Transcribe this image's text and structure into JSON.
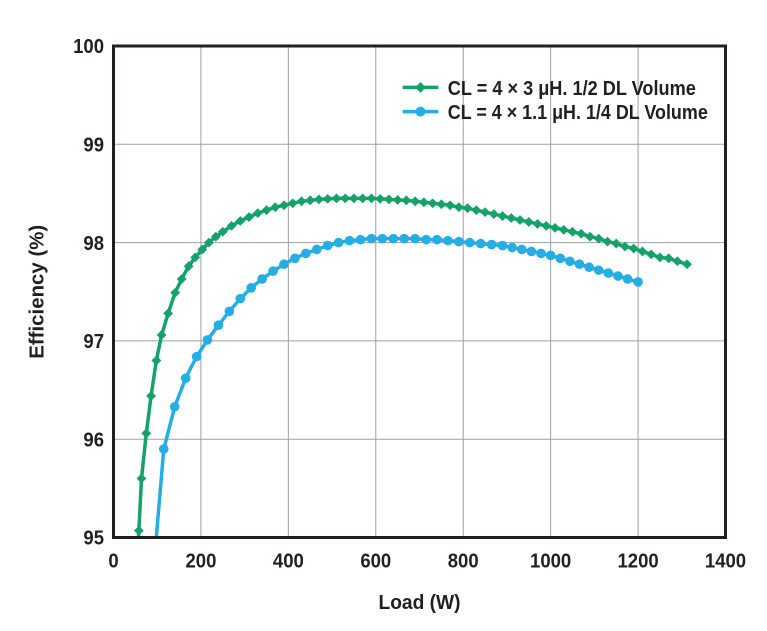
{
  "chart_data": {
    "type": "line",
    "title": "",
    "xlabel": "Load (W)",
    "ylabel": "Efficiency (%)",
    "xlim": [
      0,
      1400
    ],
    "ylim": [
      95,
      100
    ],
    "xticks": [
      0,
      200,
      400,
      600,
      800,
      1000,
      1200,
      1400
    ],
    "yticks": [
      95,
      96,
      97,
      98,
      99,
      100
    ],
    "grid": true,
    "legend_position": "inside top-right",
    "series": [
      {
        "name": "CL = 4 × 3 μH. 1/2 DL Volume",
        "marker": "diamond",
        "color": "#14a269",
        "lead": [
          [
            56,
            94.93
          ]
        ],
        "points": [
          [
            58,
            95.07
          ],
          [
            64,
            95.6
          ],
          [
            75,
            96.06
          ],
          [
            86,
            96.44
          ],
          [
            98,
            96.8
          ],
          [
            110,
            97.06
          ],
          [
            125,
            97.28
          ],
          [
            141,
            97.49
          ],
          [
            156,
            97.63
          ],
          [
            172,
            97.76
          ],
          [
            187,
            97.85
          ],
          [
            203,
            97.93
          ],
          [
            218,
            98.0
          ],
          [
            234,
            98.06
          ],
          [
            250,
            98.11
          ],
          [
            270,
            98.17
          ],
          [
            290,
            98.22
          ],
          [
            310,
            98.26
          ],
          [
            330,
            98.3
          ],
          [
            350,
            98.33
          ],
          [
            370,
            98.36
          ],
          [
            390,
            98.38
          ],
          [
            410,
            98.4
          ],
          [
            430,
            98.42
          ],
          [
            450,
            98.43
          ],
          [
            470,
            98.44
          ],
          [
            490,
            98.445
          ],
          [
            510,
            98.45
          ],
          [
            530,
            98.45
          ],
          [
            550,
            98.45
          ],
          [
            570,
            98.45
          ],
          [
            590,
            98.45
          ],
          [
            610,
            98.445
          ],
          [
            630,
            98.44
          ],
          [
            650,
            98.435
          ],
          [
            670,
            98.43
          ],
          [
            690,
            98.42
          ],
          [
            710,
            98.41
          ],
          [
            730,
            98.4
          ],
          [
            750,
            98.39
          ],
          [
            770,
            98.38
          ],
          [
            790,
            98.36
          ],
          [
            810,
            98.35
          ],
          [
            830,
            98.33
          ],
          [
            850,
            98.31
          ],
          [
            870,
            98.29
          ],
          [
            890,
            98.27
          ],
          [
            910,
            98.25
          ],
          [
            930,
            98.23
          ],
          [
            950,
            98.21
          ],
          [
            970,
            98.19
          ],
          [
            990,
            98.17
          ],
          [
            1010,
            98.15
          ],
          [
            1030,
            98.13
          ],
          [
            1050,
            98.11
          ],
          [
            1070,
            98.09
          ],
          [
            1090,
            98.06
          ],
          [
            1110,
            98.04
          ],
          [
            1130,
            98.01
          ],
          [
            1150,
            97.99
          ],
          [
            1170,
            97.96
          ],
          [
            1190,
            97.94
          ],
          [
            1210,
            97.91
          ],
          [
            1230,
            97.88
          ],
          [
            1250,
            97.85
          ],
          [
            1270,
            97.84
          ],
          [
            1290,
            97.81
          ],
          [
            1312,
            97.78
          ]
        ]
      },
      {
        "name": "CL = 4 × 1.1 μH. 1/4 DL Volume",
        "marker": "circle",
        "color": "#25ade5",
        "lead": [
          [
            95,
            94.85
          ]
        ],
        "points": [
          [
            115,
            95.9
          ],
          [
            140,
            96.33
          ],
          [
            165,
            96.62
          ],
          [
            190,
            96.84
          ],
          [
            215,
            97.01
          ],
          [
            240,
            97.16
          ],
          [
            265,
            97.3
          ],
          [
            290,
            97.43
          ],
          [
            315,
            97.54
          ],
          [
            340,
            97.63
          ],
          [
            365,
            97.71
          ],
          [
            390,
            97.78
          ],
          [
            415,
            97.84
          ],
          [
            440,
            97.89
          ],
          [
            465,
            97.93
          ],
          [
            490,
            97.97
          ],
          [
            515,
            98.0
          ],
          [
            540,
            98.02
          ],
          [
            565,
            98.03
          ],
          [
            590,
            98.04
          ],
          [
            615,
            98.04
          ],
          [
            640,
            98.04
          ],
          [
            665,
            98.04
          ],
          [
            690,
            98.04
          ],
          [
            715,
            98.03
          ],
          [
            740,
            98.03
          ],
          [
            765,
            98.02
          ],
          [
            790,
            98.01
          ],
          [
            815,
            98.0
          ],
          [
            840,
            97.99
          ],
          [
            865,
            97.98
          ],
          [
            890,
            97.97
          ],
          [
            912,
            97.95
          ],
          [
            934,
            97.93
          ],
          [
            956,
            97.91
          ],
          [
            978,
            97.89
          ],
          [
            1000,
            97.87
          ],
          [
            1022,
            97.84
          ],
          [
            1044,
            97.81
          ],
          [
            1066,
            97.78
          ],
          [
            1088,
            97.75
          ],
          [
            1110,
            97.72
          ],
          [
            1132,
            97.69
          ],
          [
            1154,
            97.66
          ],
          [
            1176,
            97.63
          ],
          [
            1200,
            97.6
          ]
        ]
      }
    ]
  },
  "colors": {
    "background": "#ffffff",
    "axis": "#231f20",
    "text": "#231f20",
    "grid": "#9da0a3",
    "series_green": "#14a269",
    "series_blue": "#25ade5"
  }
}
